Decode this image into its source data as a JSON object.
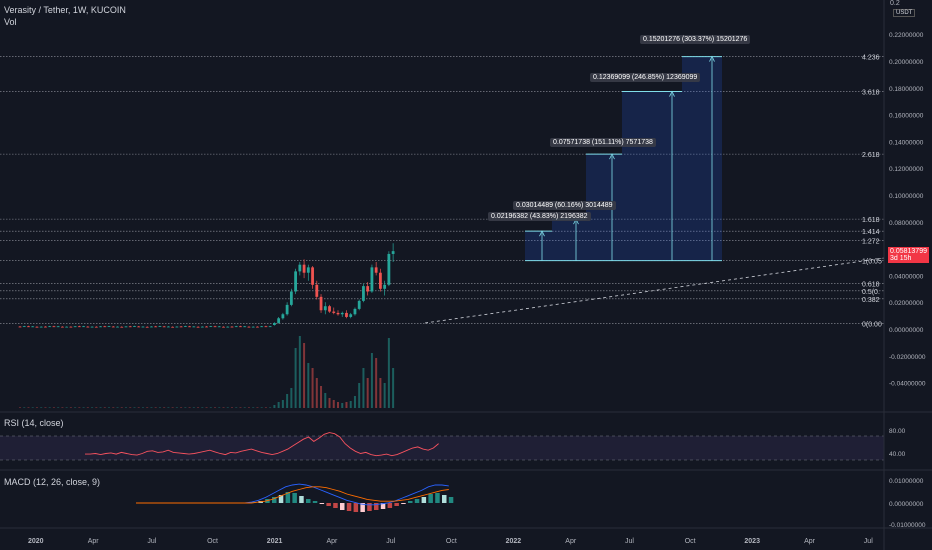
{
  "header": {
    "symbol": "Verasity / Tether, 1W, KUCOIN",
    "volume": "Vol",
    "currency_badge": "USDT"
  },
  "price_axis": {
    "ticks": [
      "0.22000000",
      "0.20000000",
      "0.18000000",
      "0.16000000",
      "0.14000000",
      "0.12000000",
      "0.10000000",
      "0.08000000",
      "0.06000000",
      "0.04000000",
      "0.02000000",
      "0.00000000",
      "-0.02000000",
      "-0.04000000"
    ],
    "top_partial": "0.2",
    "current_price": "0.05813799",
    "countdown": "3d 15h"
  },
  "fib_levels": [
    {
      "label": "4.236",
      "value": 0.2033
    },
    {
      "label": "3.618",
      "value": 0.1772
    },
    {
      "label": "2.618",
      "value": 0.1305
    },
    {
      "label": "1.618",
      "value": 0.082
    },
    {
      "label": "1.414",
      "value": 0.073
    },
    {
      "label": "1.272",
      "value": 0.066
    },
    {
      "label": "1(0.05",
      "value": 0.051
    },
    {
      "label": "0.618",
      "value": 0.0338
    },
    {
      "label": "0.5(0.",
      "value": 0.0285
    },
    {
      "label": "0.382",
      "value": 0.0225
    },
    {
      "label": "0(0.00",
      "value": 0.004
    }
  ],
  "measure_labels": [
    "0.02196382 (43.83%) 2196382",
    "0.03014489 (60.16%) 3014489",
    "0.07571738 (151.11%) 7571738",
    "0.12369099 (246.85%) 12369099",
    "0.15201276 (303.37%) 15201276"
  ],
  "time_axis": [
    "2020",
    "Apr",
    "Jul",
    "Oct",
    "2021",
    "Apr",
    "Jul",
    "Oct",
    "2022",
    "Apr",
    "Jul",
    "Oct",
    "2023",
    "Apr",
    "Jul"
  ],
  "rsi": {
    "title": "RSI (14, close)",
    "ticks": [
      "80.00",
      "40.00"
    ]
  },
  "macd": {
    "title": "MACD (12, 26, close, 9)",
    "ticks": [
      "0.01000000",
      "0.00000000",
      "-0.01000000"
    ]
  },
  "colors": {
    "up": "#26a69a",
    "down": "#ef5350",
    "rsi": "#f7525f",
    "macd": "#2962ff",
    "signal": "#ff6d00"
  }
}
